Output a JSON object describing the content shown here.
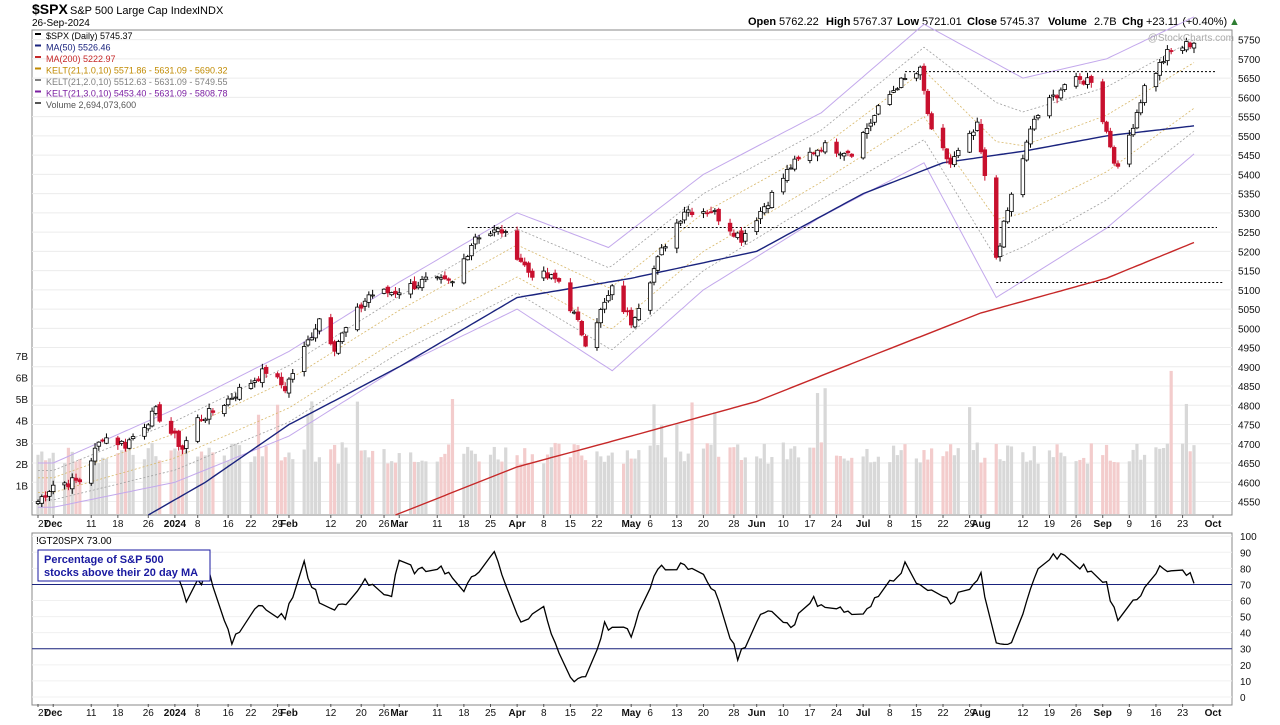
{
  "header": {
    "symbol": "$SPX",
    "name": "S&P 500 Large Cap Index",
    "exchange": "INDX",
    "date": "26-Sep-2024",
    "open_label": "Open",
    "open": "5762.22",
    "high_label": "High",
    "high": "5767.37",
    "low_label": "Low",
    "low": "5721.01",
    "close_label": "Close",
    "close": "5745.37",
    "volume_label": "Volume",
    "volume": "2.7B",
    "chg_label": "Chg",
    "chg": "+23.11 (+0.40%)",
    "watermark": "@StockCharts.com"
  },
  "legend": [
    {
      "text": "$SPX (Daily) 5745.37",
      "color": "#000000"
    },
    {
      "text": "MA(50) 5526.46",
      "color": "#1a237e"
    },
    {
      "text": "MA(200) 5222.97",
      "color": "#c62828"
    },
    {
      "text": "KELT(21,1.0,10) 5571.86 - 5631.09 - 5690.32",
      "color": "#c08a00"
    },
    {
      "text": "KELT(21,2.0,10) 5512.63 - 5631.09 - 5749.55",
      "color": "#808080"
    },
    {
      "text": "KELT(21,3.0,10) 5453.40 - 5631.09 - 5808.78",
      "color": "#7b1fa2"
    },
    {
      "text": "Volume 2,694,073,600",
      "color": "#555555"
    }
  ],
  "indicator": {
    "title": "!GT20SPX 73.00",
    "annotation_line1": "Percentage of S&P 500",
    "annotation_line2": "stocks above their 20 day MA",
    "upper_level": 70,
    "lower_level": 30
  },
  "colors": {
    "up_candle": "#000000",
    "down_candle": "#c8102e",
    "ma50": "#1a237e",
    "ma200": "#c62828",
    "kelt1": "#d8b86a",
    "kelt2": "#a0a0a0",
    "kelt3": "#c3a8ec",
    "volume_up": "#d8d8d8",
    "volume_down": "#f3cccc",
    "indicator_line": "#000000",
    "level_line": "#1a237e",
    "annotation_text": "#1a1aa0"
  },
  "chart_data": [
    {
      "type": "candlestick",
      "series_name": "$SPX (Daily)",
      "x_start": "2023-11-27",
      "x_end": "2024-09-26",
      "x_tick_labels": [
        "27",
        "Dec",
        "11",
        "18",
        "26",
        "2024",
        "8",
        "16",
        "22",
        "29",
        "Feb",
        "12",
        "20",
        "26",
        "Mar",
        "11",
        "18",
        "25",
        "Apr",
        "8",
        "15",
        "22",
        "May",
        "6",
        "13",
        "20",
        "28",
        "Jun",
        "10",
        "17",
        "24",
        "Jul",
        "8",
        "15",
        "22",
        "29",
        "Aug",
        "12",
        "19",
        "26",
        "Sep",
        "9",
        "16",
        "23",
        "Oct"
      ],
      "bold_x_labels": [
        "Dec",
        "2024",
        "Feb",
        "Mar",
        "Apr",
        "May",
        "Jun",
        "Jul",
        "Aug",
        "Sep",
        "Oct"
      ],
      "y_ticks": [
        4550,
        4600,
        4650,
        4700,
        4750,
        4800,
        4850,
        4900,
        4950,
        5000,
        5050,
        5100,
        5150,
        5200,
        5250,
        5300,
        5350,
        5400,
        5450,
        5500,
        5550,
        5600,
        5650,
        5700,
        5750
      ],
      "ylim": [
        4515,
        5775
      ],
      "close_path": [
        [
          "2023-11-27",
          4550
        ],
        [
          "2023-12-01",
          4594
        ],
        [
          "2023-12-08",
          4604
        ],
        [
          "2023-12-14",
          4719
        ],
        [
          "2023-12-20",
          4698
        ],
        [
          "2023-12-28",
          4783
        ],
        [
          "2024-01-04",
          4688
        ],
        [
          "2024-01-08",
          4763
        ],
        [
          "2024-01-12",
          4783
        ],
        [
          "2024-01-19",
          4839
        ],
        [
          "2024-01-26",
          4890
        ],
        [
          "2024-01-31",
          4845
        ],
        [
          "2024-02-09",
          5026
        ],
        [
          "2024-02-13",
          4953
        ],
        [
          "2024-02-22",
          5087
        ],
        [
          "2024-02-29",
          5096
        ],
        [
          "2024-03-08",
          5123
        ],
        [
          "2024-03-15",
          5117
        ],
        [
          "2024-03-21",
          5241
        ],
        [
          "2024-03-28",
          5254
        ],
        [
          "2024-04-04",
          5147
        ],
        [
          "2024-04-12",
          5123
        ],
        [
          "2024-04-19",
          4967
        ],
        [
          "2024-04-26",
          5100
        ],
        [
          "2024-05-01",
          5018
        ],
        [
          "2024-05-10",
          5222
        ],
        [
          "2024-05-15",
          5308
        ],
        [
          "2024-05-22",
          5307
        ],
        [
          "2024-05-30",
          5235
        ],
        [
          "2024-06-07",
          5346
        ],
        [
          "2024-06-12",
          5421
        ],
        [
          "2024-06-20",
          5473
        ],
        [
          "2024-06-28",
          5460
        ],
        [
          "2024-07-05",
          5567
        ],
        [
          "2024-07-10",
          5633
        ],
        [
          "2024-07-16",
          5667
        ],
        [
          "2024-07-19",
          5505
        ],
        [
          "2024-07-24",
          5427
        ],
        [
          "2024-07-31",
          5522
        ],
        [
          "2024-08-05",
          5186
        ],
        [
          "2024-08-09",
          5344
        ],
        [
          "2024-08-15",
          5543
        ],
        [
          "2024-08-23",
          5634
        ],
        [
          "2024-08-30",
          5648
        ],
        [
          "2024-09-06",
          5408
        ],
        [
          "2024-09-13",
          5626
        ],
        [
          "2024-09-19",
          5713
        ],
        [
          "2024-09-26",
          5745
        ]
      ],
      "ma50_path": [
        [
          "2023-12-26",
          4515
        ],
        [
          "2024-01-10",
          4600
        ],
        [
          "2024-02-01",
          4750
        ],
        [
          "2024-03-01",
          4900
        ],
        [
          "2024-04-01",
          5080
        ],
        [
          "2024-05-01",
          5130
        ],
        [
          "2024-06-03",
          5200
        ],
        [
          "2024-07-01",
          5350
        ],
        [
          "2024-07-22",
          5430
        ],
        [
          "2024-08-12",
          5460
        ],
        [
          "2024-09-03",
          5500
        ],
        [
          "2024-09-26",
          5526
        ]
      ],
      "ma200_path": [
        [
          "2024-02-29",
          4515
        ],
        [
          "2024-04-01",
          4640
        ],
        [
          "2024-05-01",
          4720
        ],
        [
          "2024-06-03",
          4810
        ],
        [
          "2024-07-01",
          4920
        ],
        [
          "2024-08-01",
          5040
        ],
        [
          "2024-09-03",
          5130
        ],
        [
          "2024-09-26",
          5223
        ]
      ],
      "kelt3_upper_path": [
        [
          "2023-12-01",
          4650
        ],
        [
          "2024-01-02",
          4790
        ],
        [
          "2024-02-01",
          4940
        ],
        [
          "2024-03-01",
          5120
        ],
        [
          "2024-04-01",
          5300
        ],
        [
          "2024-04-25",
          5210
        ],
        [
          "2024-05-20",
          5400
        ],
        [
          "2024-06-20",
          5560
        ],
        [
          "2024-07-17",
          5790
        ],
        [
          "2024-08-12",
          5650
        ],
        [
          "2024-09-03",
          5700
        ],
        [
          "2024-09-26",
          5809
        ]
      ],
      "kelt3_lower_path": [
        [
          "2023-12-01",
          4535
        ],
        [
          "2024-01-02",
          4600
        ],
        [
          "2024-02-01",
          4720
        ],
        [
          "2024-03-01",
          4900
        ],
        [
          "2024-04-01",
          5050
        ],
        [
          "2024-04-26",
          4890
        ],
        [
          "2024-05-20",
          5100
        ],
        [
          "2024-06-20",
          5290
        ],
        [
          "2024-07-17",
          5430
        ],
        [
          "2024-08-05",
          5080
        ],
        [
          "2024-09-03",
          5260
        ],
        [
          "2024-09-26",
          5453
        ]
      ],
      "horizontal_levels": [
        5667,
        5262,
        5119
      ],
      "volume": {
        "y_ticks_labels": [
          "1B",
          "2B",
          "3B",
          "4B",
          "5B",
          "6B",
          "7B"
        ],
        "y_ticks_values": [
          1,
          2,
          3,
          4,
          5,
          6,
          7
        ],
        "unit": "billions",
        "typical_range": [
          2.0,
          3.0
        ],
        "spikes": [
          [
            "2024-03-15",
            5.0
          ],
          [
            "2024-06-21",
            5.5
          ],
          [
            "2024-09-20",
            6.3
          ]
        ]
      }
    },
    {
      "type": "line",
      "series_name": "!GT20SPX",
      "last_value": 73.0,
      "y_ticks": [
        0,
        10,
        20,
        30,
        40,
        50,
        60,
        70,
        80,
        90,
        100
      ],
      "ylim": [
        -5,
        102
      ],
      "levels": [
        70,
        30
      ],
      "path": [
        [
          "2023-11-27",
          75
        ],
        [
          "2024-01-02",
          80
        ],
        [
          "2024-01-05",
          62
        ],
        [
          "2024-01-11",
          78
        ],
        [
          "2024-01-17",
          35
        ],
        [
          "2024-01-24",
          58
        ],
        [
          "2024-01-31",
          50
        ],
        [
          "2024-02-05",
          82
        ],
        [
          "2024-02-09",
          60
        ],
        [
          "2024-02-15",
          55
        ],
        [
          "2024-02-20",
          72
        ],
        [
          "2024-02-28",
          62
        ],
        [
          "2024-03-01",
          85
        ],
        [
          "2024-03-06",
          77
        ],
        [
          "2024-03-12",
          82
        ],
        [
          "2024-03-18",
          65
        ],
        [
          "2024-03-22",
          80
        ],
        [
          "2024-03-26",
          88
        ],
        [
          "2024-04-02",
          45
        ],
        [
          "2024-04-08",
          55
        ],
        [
          "2024-04-15",
          10
        ],
        [
          "2024-04-19",
          11
        ],
        [
          "2024-04-24",
          45
        ],
        [
          "2024-05-01",
          40
        ],
        [
          "2024-05-08",
          80
        ],
        [
          "2024-05-15",
          82
        ],
        [
          "2024-05-22",
          70
        ],
        [
          "2024-05-29",
          25
        ],
        [
          "2024-06-05",
          55
        ],
        [
          "2024-06-12",
          45
        ],
        [
          "2024-06-18",
          60
        ],
        [
          "2024-06-24",
          55
        ],
        [
          "2024-07-01",
          50
        ],
        [
          "2024-07-08",
          72
        ],
        [
          "2024-07-12",
          82
        ],
        [
          "2024-07-18",
          65
        ],
        [
          "2024-07-25",
          60
        ],
        [
          "2024-08-01",
          75
        ],
        [
          "2024-08-05",
          35
        ],
        [
          "2024-08-08",
          30
        ],
        [
          "2024-08-12",
          50
        ],
        [
          "2024-08-16",
          80
        ],
        [
          "2024-08-21",
          88
        ],
        [
          "2024-08-27",
          82
        ],
        [
          "2024-09-03",
          70
        ],
        [
          "2024-09-06",
          45
        ],
        [
          "2024-09-11",
          62
        ],
        [
          "2024-09-17",
          82
        ],
        [
          "2024-09-20",
          80
        ],
        [
          "2024-09-23",
          78
        ],
        [
          "2024-09-26",
          73
        ]
      ]
    }
  ]
}
